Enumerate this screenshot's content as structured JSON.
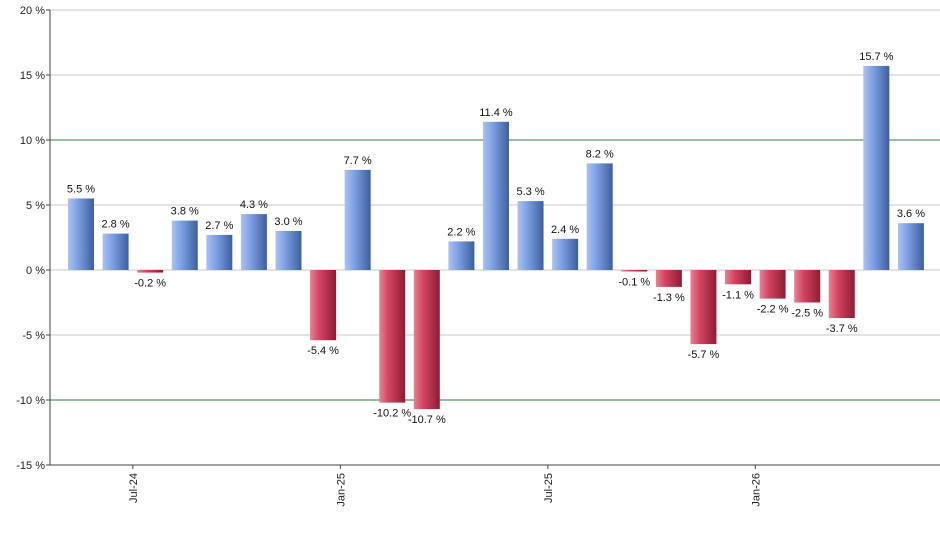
{
  "chart_data": {
    "type": "bar",
    "title": "",
    "xlabel": "",
    "ylabel": "",
    "ylim": [
      -15,
      20
    ],
    "y_ticks": [
      -15,
      -10,
      -5,
      0,
      5,
      10,
      15,
      20
    ],
    "y_tick_labels": [
      "-15 %",
      "-10 %",
      "-5 %",
      "0 %",
      "5 %",
      "10 %",
      "15 %",
      "20 %"
    ],
    "highlight_lines": [
      10,
      -10
    ],
    "x_tick_labels": [
      {
        "label": "Jul-24",
        "index": 1.5
      },
      {
        "label": "Jan-25",
        "index": 7.5
      },
      {
        "label": "Jul-25",
        "index": 13.5
      },
      {
        "label": "Jan-26",
        "index": 19.5
      }
    ],
    "values": [
      5.5,
      2.8,
      -0.2,
      3.8,
      2.7,
      4.3,
      3.0,
      -5.4,
      7.7,
      -10.2,
      -10.7,
      2.2,
      11.4,
      5.3,
      2.4,
      8.2,
      -0.1,
      -1.3,
      -5.7,
      -1.1,
      -2.2,
      -2.5,
      -3.7,
      15.7,
      3.6
    ],
    "labels": [
      "5.5 %",
      "2.8 %",
      "-0.2 %",
      "3.8 %",
      "2.7 %",
      "4.3 %",
      "3.0 %",
      "-5.4 %",
      "7.7 %",
      "-10.2 %",
      "-10.7 %",
      "2.2 %",
      "11.4 %",
      "5.3 %",
      "2.4 %",
      "8.2 %",
      "-0.1 %",
      "-1.3 %",
      "-5.7 %",
      "-1.1 %",
      "-2.2 %",
      "-2.5 %",
      "-3.7 %",
      "15.7 %",
      "3.6 %"
    ],
    "grid": true,
    "colors": {
      "positive": "#6f93d8",
      "negative": "#c8304f",
      "grid": "#c8c8c8",
      "highlight": "#2e7d32",
      "axis": "#444444"
    }
  }
}
